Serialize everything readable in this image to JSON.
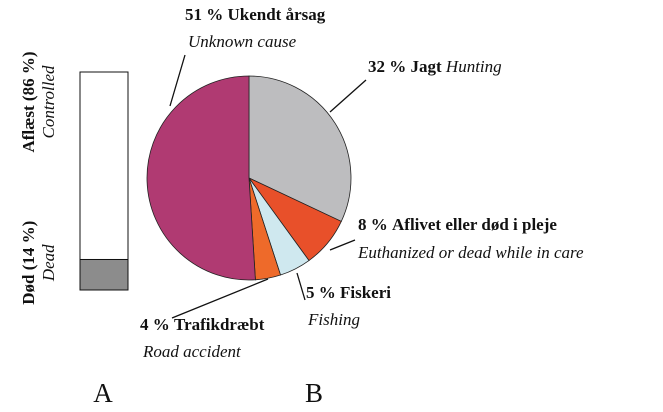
{
  "chart_data": [
    {
      "type": "stacked-bar",
      "panel_label": "A",
      "categories": [
        "Død",
        "Aflæst"
      ],
      "subtitles": [
        "Dead",
        "Controlled"
      ],
      "values": [
        14,
        86
      ],
      "value_labels": [
        "(14 %)",
        "(86 %)"
      ],
      "colors": [
        "#8c8c8c",
        "#ffffff"
      ]
    },
    {
      "type": "pie",
      "panel_label": "B",
      "categories": [
        "Jagt",
        "Aflivet eller død i pleje",
        "Fiskeri",
        "Trafikdræbt",
        "Ukendt årsag"
      ],
      "subtitles": [
        "Hunting",
        "Euthanized or dead while in care",
        "Fishing",
        "Road accident",
        "Unknown cause"
      ],
      "values": [
        32,
        8,
        5,
        4,
        51
      ],
      "value_labels": [
        "32 %",
        "8 %",
        "5 %",
        "4 %",
        "51 %"
      ],
      "colors": [
        "#bdbdbf",
        "#e8502a",
        "#cfe8ef",
        "#ee6a2a",
        "#b03a72"
      ]
    }
  ]
}
